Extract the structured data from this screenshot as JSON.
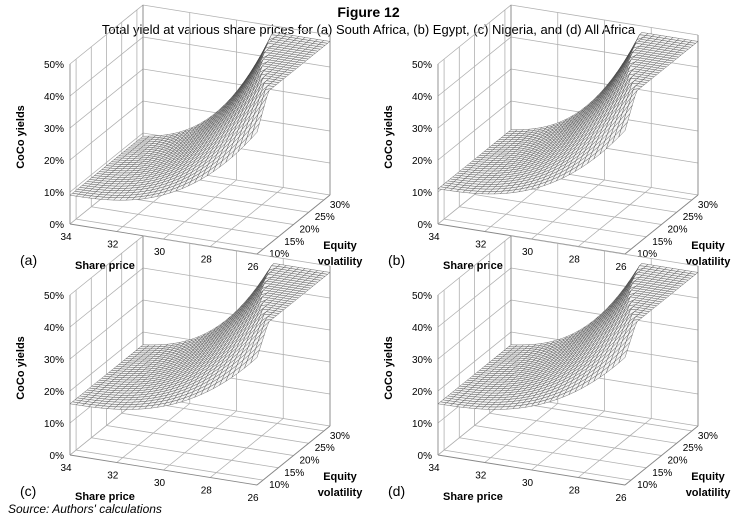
{
  "figure": {
    "title": "Figure 12",
    "subtitle": "Total yield at various share prices for (a) South Africa, (b) Egypt, (c) Nigeria, and (d) All Africa",
    "source": "Source: Authors' calculations"
  },
  "colors": {
    "mesh": "#3a3a3a",
    "grid": "#b0b0b0",
    "text": "#000000"
  },
  "chart_data": [
    {
      "type": "surface",
      "panel_label": "(a)",
      "ylabel": "CoCo yields",
      "xlabel": "Share price",
      "zlabel_lines": [
        "Equity",
        "volatility"
      ],
      "share_price_range": [
        34,
        26
      ],
      "share_price_ticks": [
        "34",
        "32",
        "30",
        "28",
        "26"
      ],
      "volatility_range": [
        0.08,
        0.32
      ],
      "volatility_ticks": [
        "10%",
        "15%",
        "20%",
        "25%",
        "30%"
      ],
      "yield_range": [
        0,
        0.5
      ],
      "yield_ticks": [
        "0%",
        "10%",
        "20%",
        "30%",
        "40%",
        "50%"
      ],
      "surface": {
        "min_yield": 0.09,
        "max_yield": 0.48
      }
    },
    {
      "type": "surface",
      "panel_label": "(b)",
      "ylabel": "CoCo yields",
      "xlabel": "Share price",
      "zlabel_lines": [
        "Equity",
        "volatility"
      ],
      "share_price_range": [
        34,
        26
      ],
      "share_price_ticks": [
        "34",
        "32",
        "30",
        "28",
        "26"
      ],
      "volatility_range": [
        0.08,
        0.32
      ],
      "volatility_ticks": [
        "10%",
        "15%",
        "20%",
        "25%",
        "30%"
      ],
      "yield_range": [
        0,
        0.5
      ],
      "yield_ticks": [
        "0%",
        "10%",
        "20%",
        "30%",
        "40%",
        "50%"
      ],
      "surface": {
        "min_yield": 0.11,
        "max_yield": 0.48
      }
    },
    {
      "type": "surface",
      "panel_label": "(c)",
      "ylabel": "CoCo yields",
      "xlabel": "Share price",
      "zlabel_lines": [
        "Equity",
        "volatility"
      ],
      "share_price_range": [
        34,
        26
      ],
      "share_price_ticks": [
        "34",
        "32",
        "30",
        "28",
        "26"
      ],
      "volatility_range": [
        0.08,
        0.32
      ],
      "volatility_ticks": [
        "10%",
        "15%",
        "20%",
        "25%",
        "30%"
      ],
      "yield_range": [
        0,
        0.5
      ],
      "yield_ticks": [
        "0%",
        "10%",
        "20%",
        "30%",
        "40%",
        "50%"
      ],
      "surface": {
        "min_yield": 0.16,
        "max_yield": 0.48
      }
    },
    {
      "type": "surface",
      "panel_label": "(d)",
      "ylabel": "CoCo yields",
      "xlabel": "Share price",
      "zlabel_lines": [
        "Equity",
        "volatility"
      ],
      "share_price_range": [
        34,
        26
      ],
      "share_price_ticks": [
        "34",
        "32",
        "30",
        "28",
        "26"
      ],
      "volatility_range": [
        0.08,
        0.32
      ],
      "volatility_ticks": [
        "10%",
        "15%",
        "20%",
        "25%",
        "30%"
      ],
      "yield_range": [
        0,
        0.5
      ],
      "yield_ticks": [
        "0%",
        "10%",
        "20%",
        "30%",
        "40%",
        "50%"
      ],
      "surface": {
        "min_yield": 0.16,
        "max_yield": 0.48
      }
    }
  ]
}
